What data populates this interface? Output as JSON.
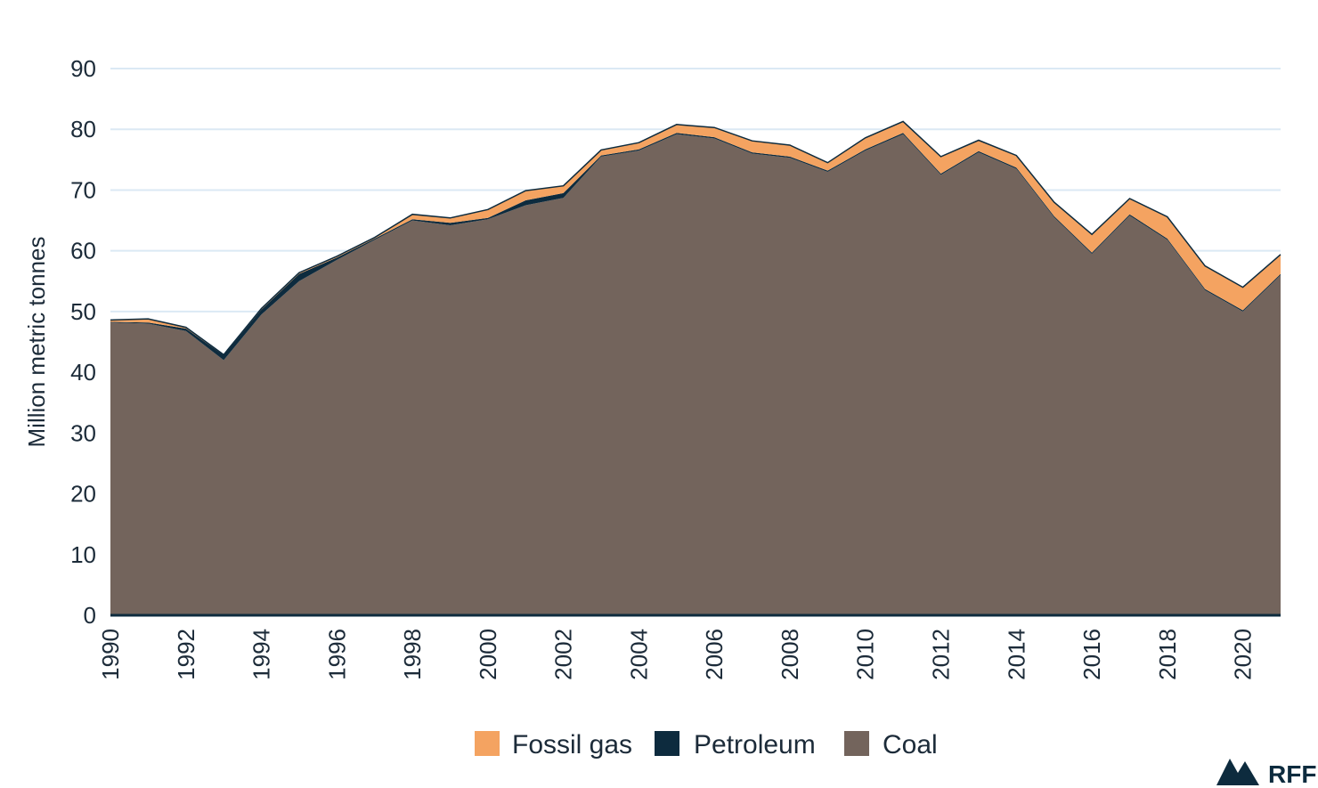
{
  "chart_data": {
    "type": "area",
    "stacked": true,
    "ylabel": "Million metric tonnes",
    "xlabel": "",
    "ylim": [
      0,
      90
    ],
    "yticks": [
      0,
      10,
      20,
      30,
      40,
      50,
      60,
      70,
      80,
      90
    ],
    "x": [
      1990,
      1991,
      1992,
      1993,
      1994,
      1995,
      1996,
      1997,
      1998,
      1999,
      2000,
      2001,
      2002,
      2003,
      2004,
      2005,
      2006,
      2007,
      2008,
      2009,
      2010,
      2011,
      2012,
      2013,
      2014,
      2015,
      2016,
      2017,
      2018,
      2019,
      2020,
      2021
    ],
    "xtick_labels": [
      "1990",
      "1992",
      "1994",
      "1996",
      "1998",
      "2000",
      "2002",
      "2004",
      "2006",
      "2008",
      "2010",
      "2012",
      "2014",
      "2016",
      "2018",
      "2020"
    ],
    "grid": true,
    "legend_position": "bottom-center",
    "series": [
      {
        "name": "Coal",
        "color": "#73645c",
        "values": [
          48.2,
          48.0,
          46.8,
          42.0,
          49.5,
          55.0,
          58.5,
          61.8,
          65.0,
          64.2,
          65.2,
          67.5,
          68.7,
          75.5,
          76.5,
          79.2,
          78.5,
          76.0,
          75.3,
          73.0,
          76.5,
          79.2,
          72.5,
          76.2,
          73.5,
          65.5,
          59.5,
          65.8,
          61.8,
          53.5,
          50.0,
          56.0
        ]
      },
      {
        "name": "Petroleum",
        "color": "#0d2b3e",
        "values": [
          0.1,
          0.2,
          0.4,
          0.8,
          0.8,
          1.2,
          0.4,
          0.2,
          0.2,
          0.4,
          0.2,
          0.8,
          0.8,
          0.2,
          0.2,
          0.2,
          0.2,
          0.2,
          0.2,
          0.2,
          0.2,
          0.2,
          0.2,
          0.2,
          0.2,
          0.2,
          0.2,
          0.2,
          0.2,
          0.2,
          0.2,
          0.2
        ]
      },
      {
        "name": "Fossil gas",
        "color": "#f4a361",
        "values": [
          0.3,
          0.6,
          0.2,
          0.1,
          0.2,
          0.2,
          0.2,
          0.2,
          0.8,
          0.8,
          1.4,
          1.6,
          1.2,
          0.9,
          1.1,
          1.4,
          1.6,
          1.9,
          1.9,
          1.3,
          1.9,
          1.9,
          2.8,
          1.8,
          2.0,
          2.3,
          3.0,
          2.6,
          3.6,
          3.8,
          3.8,
          3.2
        ]
      }
    ]
  },
  "legend": {
    "items": [
      {
        "label": "Fossil gas",
        "color": "#f4a361"
      },
      {
        "label": "Petroleum",
        "color": "#0d2b3e"
      },
      {
        "label": "Coal",
        "color": "#73645c"
      }
    ]
  },
  "logo": {
    "text": "RFF",
    "color": "#0d2b3e"
  },
  "colors": {
    "grid": "#dbe9f4",
    "axis": "#0d2b3e",
    "text": "#1c2b39"
  }
}
